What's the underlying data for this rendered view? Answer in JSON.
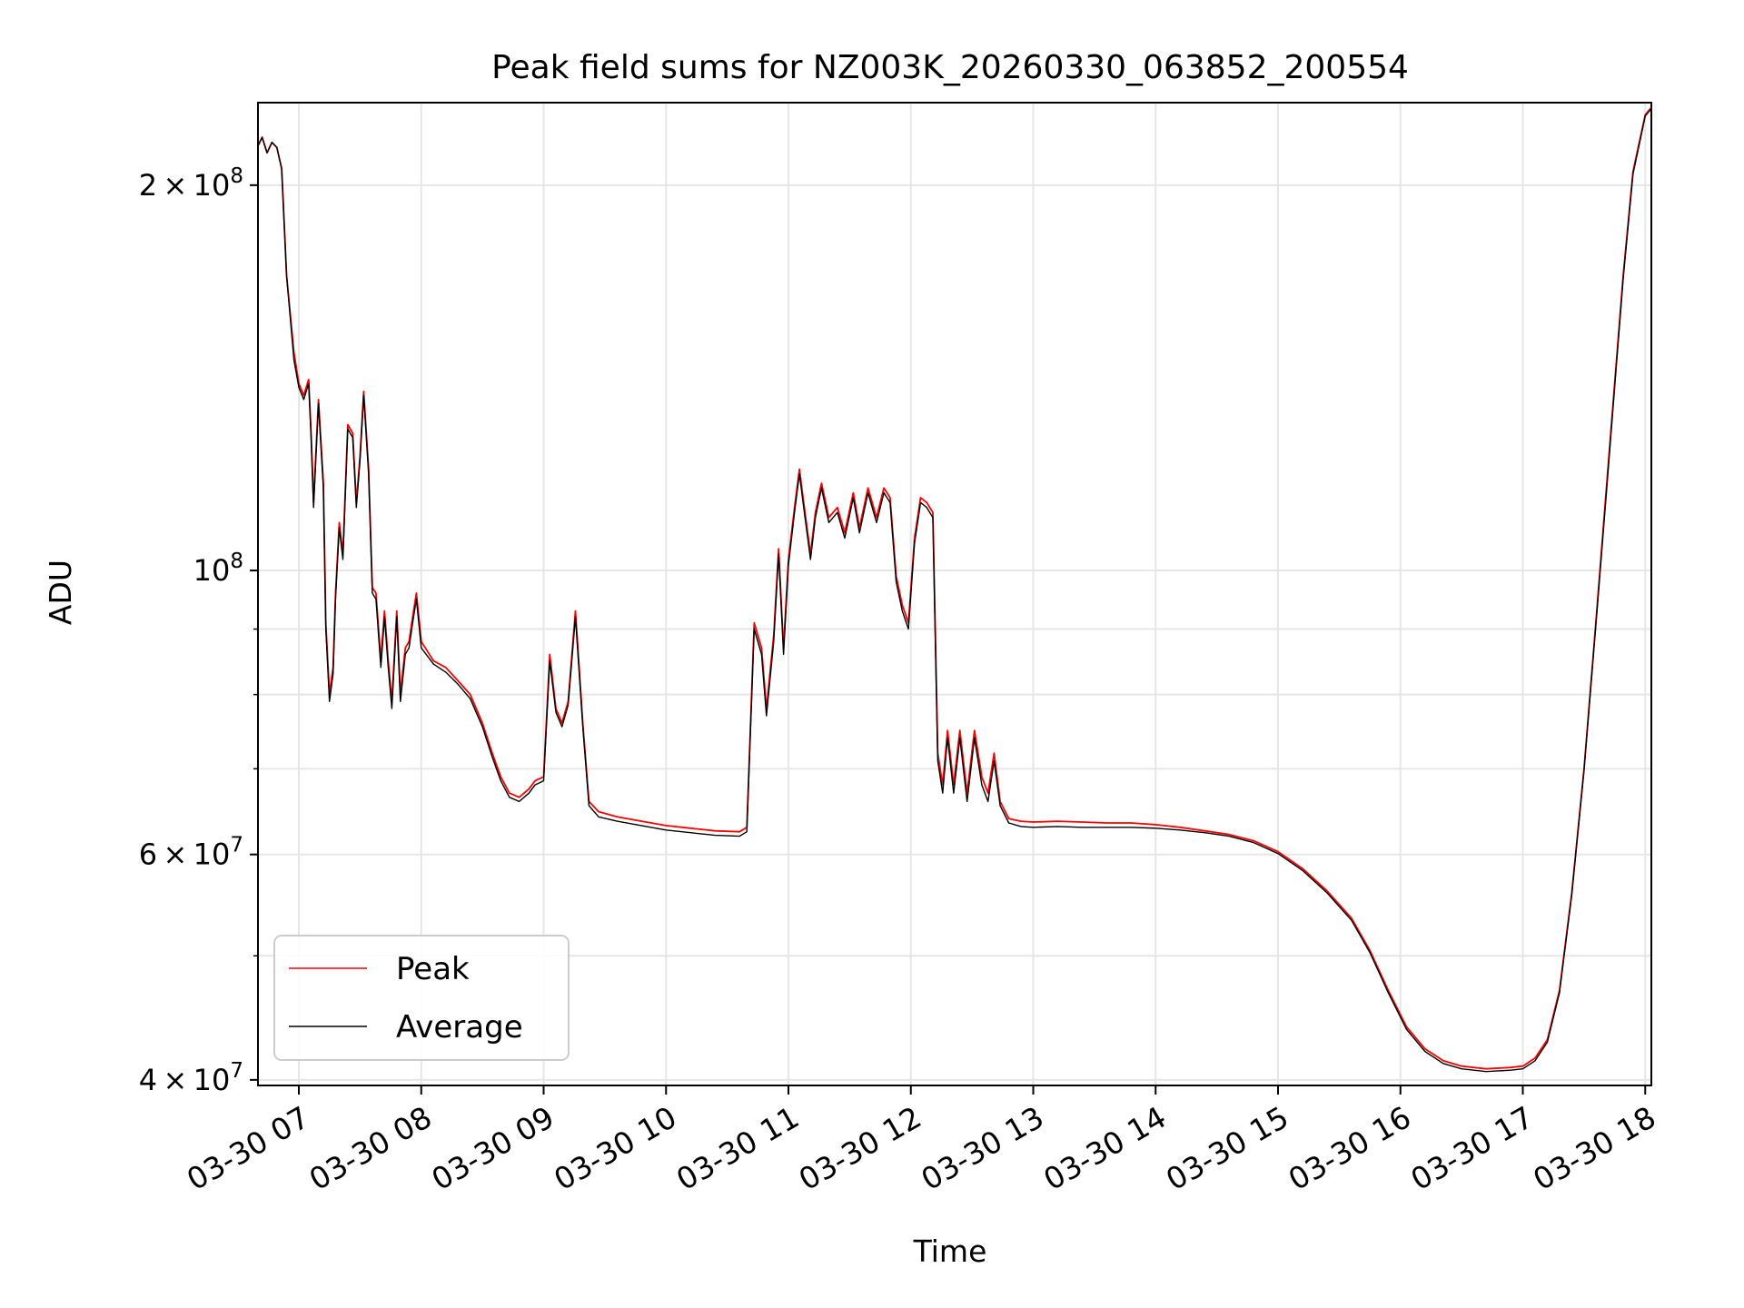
{
  "chart_data": {
    "type": "line",
    "title": "Peak field sums for NZ003K_20260330_063852_200554",
    "xlabel": "Time",
    "ylabel": "ADU",
    "yscale": "log",
    "xlim": [
      6.666,
      18.05
    ],
    "ylim": [
      39600000,
      232000000
    ],
    "grid": true,
    "x_ticks": [
      {
        "value": 7,
        "label": "03-30 07"
      },
      {
        "value": 8,
        "label": "03-30 08"
      },
      {
        "value": 9,
        "label": "03-30 09"
      },
      {
        "value": 10,
        "label": "03-30 10"
      },
      {
        "value": 11,
        "label": "03-30 11"
      },
      {
        "value": 12,
        "label": "03-30 12"
      },
      {
        "value": 13,
        "label": "03-30 13"
      },
      {
        "value": 14,
        "label": "03-30 14"
      },
      {
        "value": 15,
        "label": "03-30 15"
      },
      {
        "value": 16,
        "label": "03-30 16"
      },
      {
        "value": 17,
        "label": "03-30 17"
      },
      {
        "value": 18,
        "label": "03-30 18"
      }
    ],
    "y_major_ticks": [
      {
        "value": 40000000,
        "mantissa": "4",
        "exponent": "7"
      },
      {
        "value": 60000000,
        "mantissa": "6",
        "exponent": "7"
      },
      {
        "value": 100000000,
        "mantissa": "",
        "exponent": "8"
      },
      {
        "value": 200000000,
        "mantissa": "2",
        "exponent": "8"
      }
    ],
    "y_minor_grid": [
      50000000,
      70000000,
      80000000,
      90000000
    ],
    "times_label": "×",
    "base_label": "10",
    "legend": {
      "position": "lower-left"
    },
    "series": [
      {
        "name": "Peak",
        "color": "#ff0000",
        "points": [
          [
            6.67,
            215
          ],
          [
            6.7,
            218
          ],
          [
            6.74,
            212
          ],
          [
            6.78,
            216
          ],
          [
            6.82,
            214
          ],
          [
            6.86,
            206
          ],
          [
            6.9,
            170
          ],
          [
            6.96,
            148
          ],
          [
            7.0,
            140
          ],
          [
            7.04,
            137
          ],
          [
            7.08,
            141
          ],
          [
            7.1,
            128
          ],
          [
            7.12,
            113
          ],
          [
            7.16,
            136
          ],
          [
            7.2,
            117
          ],
          [
            7.22,
            91
          ],
          [
            7.25,
            80
          ],
          [
            7.28,
            84
          ],
          [
            7.3,
            96
          ],
          [
            7.33,
            109
          ],
          [
            7.36,
            103
          ],
          [
            7.4,
            130
          ],
          [
            7.44,
            128
          ],
          [
            7.47,
            113
          ],
          [
            7.5,
            123
          ],
          [
            7.53,
            138
          ],
          [
            7.57,
            120
          ],
          [
            7.6,
            97
          ],
          [
            7.63,
            96
          ],
          [
            7.67,
            85
          ],
          [
            7.7,
            93
          ],
          [
            7.73,
            85
          ],
          [
            7.76,
            79
          ],
          [
            7.8,
            93
          ],
          [
            7.83,
            80
          ],
          [
            7.87,
            87
          ],
          [
            7.9,
            88
          ],
          [
            7.93,
            92
          ],
          [
            7.96,
            96
          ],
          [
            8.0,
            88
          ],
          [
            8.1,
            85
          ],
          [
            8.2,
            84
          ],
          [
            8.3,
            82
          ],
          [
            8.4,
            80
          ],
          [
            8.5,
            76
          ],
          [
            8.58,
            72
          ],
          [
            8.65,
            69
          ],
          [
            8.72,
            67
          ],
          [
            8.8,
            66.5
          ],
          [
            8.88,
            67.5
          ],
          [
            8.93,
            68.5
          ],
          [
            9.0,
            69
          ],
          [
            9.05,
            86
          ],
          [
            9.1,
            78
          ],
          [
            9.15,
            76
          ],
          [
            9.2,
            79
          ],
          [
            9.26,
            93
          ],
          [
            9.32,
            76
          ],
          [
            9.37,
            66
          ],
          [
            9.45,
            64.8
          ],
          [
            9.6,
            64.2
          ],
          [
            9.8,
            63.7
          ],
          [
            10.0,
            63.2
          ],
          [
            10.2,
            62.9
          ],
          [
            10.4,
            62.6
          ],
          [
            10.6,
            62.5
          ],
          [
            10.66,
            63
          ],
          [
            10.72,
            91
          ],
          [
            10.78,
            87
          ],
          [
            10.82,
            78
          ],
          [
            10.88,
            89
          ],
          [
            10.92,
            104
          ],
          [
            10.96,
            87
          ],
          [
            11.0,
            102
          ],
          [
            11.05,
            112
          ],
          [
            11.09,
            120
          ],
          [
            11.13,
            112
          ],
          [
            11.18,
            103
          ],
          [
            11.22,
            111
          ],
          [
            11.27,
            117
          ],
          [
            11.33,
            110
          ],
          [
            11.4,
            112
          ],
          [
            11.46,
            107
          ],
          [
            11.53,
            115
          ],
          [
            11.58,
            108
          ],
          [
            11.65,
            116
          ],
          [
            11.72,
            110
          ],
          [
            11.78,
            116
          ],
          [
            11.83,
            114
          ],
          [
            11.88,
            99
          ],
          [
            11.93,
            94
          ],
          [
            11.98,
            91
          ],
          [
            12.03,
            106
          ],
          [
            12.08,
            114
          ],
          [
            12.13,
            113
          ],
          [
            12.18,
            111
          ],
          [
            12.22,
            72
          ],
          [
            12.26,
            68
          ],
          [
            12.3,
            75
          ],
          [
            12.35,
            68
          ],
          [
            12.4,
            75
          ],
          [
            12.46,
            67
          ],
          [
            12.52,
            75
          ],
          [
            12.58,
            69
          ],
          [
            12.63,
            67
          ],
          [
            12.68,
            72
          ],
          [
            12.73,
            66
          ],
          [
            12.8,
            64
          ],
          [
            12.9,
            63.7
          ],
          [
            13.0,
            63.6
          ],
          [
            13.2,
            63.7
          ],
          [
            13.4,
            63.6
          ],
          [
            13.6,
            63.5
          ],
          [
            13.8,
            63.5
          ],
          [
            14.0,
            63.3
          ],
          [
            14.2,
            63
          ],
          [
            14.4,
            62.6
          ],
          [
            14.6,
            62.2
          ],
          [
            14.8,
            61.5
          ],
          [
            15.0,
            60.3
          ],
          [
            15.2,
            58.5
          ],
          [
            15.4,
            56.2
          ],
          [
            15.6,
            53.5
          ],
          [
            15.75,
            50.5
          ],
          [
            15.9,
            47
          ],
          [
            16.05,
            44
          ],
          [
            16.2,
            42.3
          ],
          [
            16.35,
            41.4
          ],
          [
            16.5,
            41
          ],
          [
            16.7,
            40.8
          ],
          [
            16.9,
            40.9
          ],
          [
            17.0,
            41
          ],
          [
            17.1,
            41.6
          ],
          [
            17.2,
            43
          ],
          [
            17.3,
            47
          ],
          [
            17.4,
            56
          ],
          [
            17.5,
            70
          ],
          [
            17.6,
            92
          ],
          [
            17.68,
            115
          ],
          [
            17.75,
            140
          ],
          [
            17.82,
            170
          ],
          [
            17.9,
            205
          ],
          [
            18.0,
            227
          ],
          [
            18.05,
            230
          ]
        ]
      },
      {
        "name": "Average",
        "color": "#000000",
        "points": [
          [
            6.67,
            215
          ],
          [
            6.7,
            218
          ],
          [
            6.74,
            212
          ],
          [
            6.78,
            216
          ],
          [
            6.82,
            214
          ],
          [
            6.86,
            206
          ],
          [
            6.9,
            170
          ],
          [
            6.96,
            146
          ],
          [
            7.0,
            139
          ],
          [
            7.04,
            136
          ],
          [
            7.08,
            140
          ],
          [
            7.1,
            127
          ],
          [
            7.12,
            112
          ],
          [
            7.16,
            135
          ],
          [
            7.2,
            116
          ],
          [
            7.22,
            90
          ],
          [
            7.25,
            79
          ],
          [
            7.28,
            83
          ],
          [
            7.3,
            95
          ],
          [
            7.33,
            108
          ],
          [
            7.36,
            102
          ],
          [
            7.4,
            129
          ],
          [
            7.44,
            127
          ],
          [
            7.47,
            112
          ],
          [
            7.5,
            122
          ],
          [
            7.53,
            137
          ],
          [
            7.57,
            119
          ],
          [
            7.6,
            96
          ],
          [
            7.63,
            95
          ],
          [
            7.67,
            84
          ],
          [
            7.7,
            92
          ],
          [
            7.73,
            84
          ],
          [
            7.76,
            78
          ],
          [
            7.8,
            92
          ],
          [
            7.83,
            79
          ],
          [
            7.87,
            86
          ],
          [
            7.9,
            87
          ],
          [
            7.93,
            91
          ],
          [
            7.96,
            95
          ],
          [
            8.0,
            87
          ],
          [
            8.1,
            84.5
          ],
          [
            8.2,
            83.3
          ],
          [
            8.3,
            81.5
          ],
          [
            8.4,
            79.4
          ],
          [
            8.5,
            75.5
          ],
          [
            8.58,
            71.5
          ],
          [
            8.65,
            68.5
          ],
          [
            8.72,
            66.5
          ],
          [
            8.8,
            66
          ],
          [
            8.88,
            67
          ],
          [
            8.93,
            68
          ],
          [
            9.0,
            68.5
          ],
          [
            9.05,
            85
          ],
          [
            9.1,
            77.5
          ],
          [
            9.15,
            75.5
          ],
          [
            9.2,
            78.5
          ],
          [
            9.26,
            92
          ],
          [
            9.32,
            75.5
          ],
          [
            9.37,
            65.5
          ],
          [
            9.45,
            64.2
          ],
          [
            9.6,
            63.7
          ],
          [
            9.8,
            63.2
          ],
          [
            10.0,
            62.7
          ],
          [
            10.2,
            62.4
          ],
          [
            10.4,
            62.1
          ],
          [
            10.6,
            62.0
          ],
          [
            10.66,
            62.5
          ],
          [
            10.72,
            90
          ],
          [
            10.78,
            86
          ],
          [
            10.82,
            77
          ],
          [
            10.88,
            88
          ],
          [
            10.92,
            103
          ],
          [
            10.96,
            86
          ],
          [
            11.0,
            101
          ],
          [
            11.05,
            111
          ],
          [
            11.09,
            119
          ],
          [
            11.13,
            111
          ],
          [
            11.18,
            102
          ],
          [
            11.22,
            110
          ],
          [
            11.27,
            116
          ],
          [
            11.33,
            109
          ],
          [
            11.4,
            111
          ],
          [
            11.46,
            106
          ],
          [
            11.53,
            114
          ],
          [
            11.58,
            107
          ],
          [
            11.65,
            115
          ],
          [
            11.72,
            109
          ],
          [
            11.78,
            115
          ],
          [
            11.83,
            113
          ],
          [
            11.88,
            98
          ],
          [
            11.93,
            93
          ],
          [
            11.98,
            90
          ],
          [
            12.03,
            105
          ],
          [
            12.08,
            113
          ],
          [
            12.13,
            112
          ],
          [
            12.18,
            110
          ],
          [
            12.22,
            71
          ],
          [
            12.26,
            67
          ],
          [
            12.3,
            74
          ],
          [
            12.35,
            67
          ],
          [
            12.4,
            74
          ],
          [
            12.46,
            66
          ],
          [
            12.52,
            74
          ],
          [
            12.58,
            68
          ],
          [
            12.63,
            66
          ],
          [
            12.68,
            71
          ],
          [
            12.73,
            65.5
          ],
          [
            12.8,
            63.5
          ],
          [
            12.9,
            63.1
          ],
          [
            13.0,
            63.0
          ],
          [
            13.2,
            63.1
          ],
          [
            13.4,
            63.0
          ],
          [
            13.6,
            63.0
          ],
          [
            13.8,
            63.0
          ],
          [
            14.0,
            62.9
          ],
          [
            14.2,
            62.7
          ],
          [
            14.4,
            62.4
          ],
          [
            14.6,
            62.0
          ],
          [
            14.8,
            61.3
          ],
          [
            15.0,
            60.1
          ],
          [
            15.2,
            58.3
          ],
          [
            15.4,
            56.0
          ],
          [
            15.6,
            53.3
          ],
          [
            15.75,
            50.3
          ],
          [
            15.9,
            46.8
          ],
          [
            16.05,
            43.8
          ],
          [
            16.2,
            42.1
          ],
          [
            16.35,
            41.2
          ],
          [
            16.5,
            40.8
          ],
          [
            16.7,
            40.6
          ],
          [
            16.9,
            40.7
          ],
          [
            17.0,
            40.8
          ],
          [
            17.1,
            41.4
          ],
          [
            17.2,
            42.8
          ],
          [
            17.3,
            46.8
          ],
          [
            17.4,
            55.8
          ],
          [
            17.5,
            69.8
          ],
          [
            17.6,
            91.5
          ],
          [
            17.68,
            114
          ],
          [
            17.75,
            139
          ],
          [
            17.82,
            169
          ],
          [
            17.9,
            204
          ],
          [
            18.0,
            226.5
          ],
          [
            18.05,
            229.5
          ]
        ]
      }
    ],
    "y_unit_multiplier": 1000000
  }
}
